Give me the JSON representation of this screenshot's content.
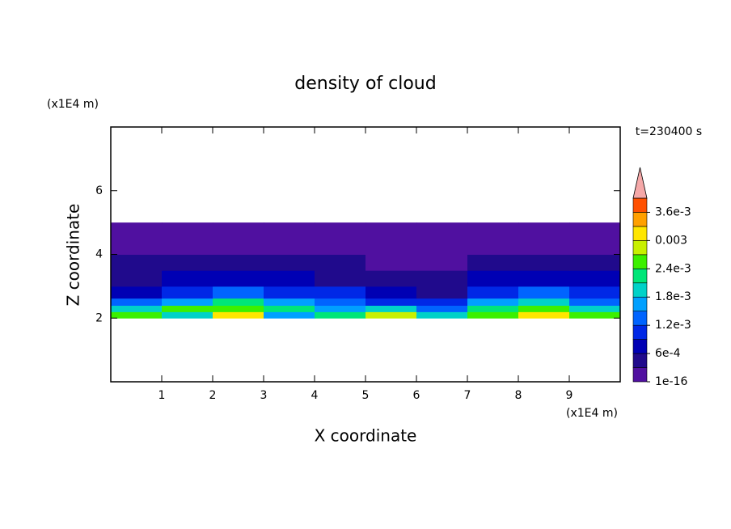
{
  "chart_data": {
    "type": "contour",
    "title": "density of cloud",
    "x_label": "X coordinate",
    "y_label": "Z coordinate",
    "x_unit": "(x1E4 m)",
    "y_unit": "(x1E4 m)",
    "annotation": "t=230400 s",
    "xlim": [
      0,
      10
    ],
    "ylim": [
      0,
      8
    ],
    "xticks": [
      1,
      2,
      3,
      4,
      5,
      6,
      7,
      8,
      9
    ],
    "yticks": [
      2,
      4,
      6
    ],
    "x": [
      0.5,
      1.5,
      2.5,
      3.5,
      4.5,
      5.5,
      6.5,
      7.5,
      8.5,
      9.5
    ],
    "y": [
      2.1,
      2.3,
      2.5,
      2.75,
      3.25,
      3.75,
      4.25,
      4.75
    ],
    "z": [
      [
        0.0025,
        0.002,
        0.003,
        0.0015,
        0.0022,
        0.0028,
        0.0018,
        0.0024,
        0.0032,
        0.0026
      ],
      [
        0.002,
        0.0024,
        0.0026,
        0.0021,
        0.0016,
        0.0018,
        0.0014,
        0.0022,
        0.0025,
        0.002
      ],
      [
        0.0012,
        0.0015,
        0.0021,
        0.0017,
        0.0013,
        0.001,
        0.0009,
        0.0016,
        0.0019,
        0.0014
      ],
      [
        0.0008,
        0.001,
        0.0012,
        0.0011,
        0.0009,
        0.0006,
        0.0005,
        0.001,
        0.0012,
        0.0009
      ],
      [
        0.0005,
        0.0006,
        0.0007,
        0.0006,
        0.0005,
        0.0004,
        0.0004,
        0.0006,
        0.0007,
        0.0006
      ],
      [
        0.00035,
        0.0004,
        0.0004,
        0.00035,
        0.00035,
        0.0002,
        0.0002,
        0.00035,
        0.0004,
        0.0004
      ],
      [
        0.0001,
        0.0002,
        0.0002,
        0.0002,
        0.0001,
        0.0001,
        0.0001,
        0.0002,
        0.0002,
        0.0002
      ],
      [
        5e-05,
        5e-05,
        5e-05,
        5e-05,
        5e-05,
        5e-05,
        5e-05,
        5e-05,
        5e-05,
        5e-05
      ]
    ],
    "level_step": 0.0003,
    "clim": [
      1e-16,
      0.0039
    ],
    "colors": [
      "#5010a0",
      "#200a8c",
      "#0000b4",
      "#0028e6",
      "#0064ff",
      "#00a0ff",
      "#00d2c8",
      "#00e678",
      "#3cf000",
      "#c8f000",
      "#ffe600",
      "#ffa000",
      "#ff5000"
    ],
    "over_color": "#f5a8a8",
    "cticks": [
      {
        "value": 1e-16,
        "label": "1e-16"
      },
      {
        "value": 0.0006,
        "label": "6e-4"
      },
      {
        "value": 0.0012,
        "label": "1.2e-3"
      },
      {
        "value": 0.0018,
        "label": "1.8e-3"
      },
      {
        "value": 0.0024,
        "label": "2.4e-3"
      },
      0.003,
      {
        "value": 0.0036,
        "label": "3.6e-3"
      }
    ]
  }
}
